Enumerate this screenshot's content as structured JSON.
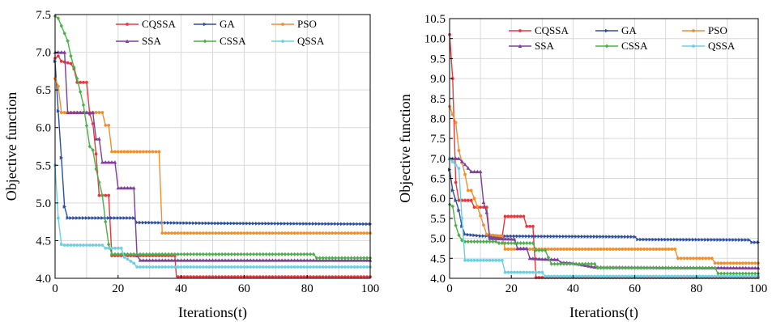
{
  "chart_data": [
    {
      "type": "line",
      "xlabel": "Iterations(t)",
      "ylabel": "Objective function",
      "xlim": [
        0,
        100
      ],
      "ylim": [
        4.0,
        7.5
      ],
      "xticks": [
        "0",
        "20",
        "40",
        "60",
        "80",
        "100"
      ],
      "yticks": [
        "4.0",
        "4.5",
        "5.0",
        "5.5",
        "6.0",
        "6.5",
        "7.0",
        "7.5"
      ],
      "grid": true,
      "legend_position": "top-right",
      "series": [
        {
          "name": "CQSSA",
          "color": "#e8383d",
          "marker": "circle",
          "points": [
            [
              0,
              6.92
            ],
            [
              1,
              6.95
            ],
            [
              2,
              6.88
            ],
            [
              5,
              6.85
            ],
            [
              6,
              6.78
            ],
            [
              7,
              6.6
            ],
            [
              10,
              6.6
            ],
            [
              11,
              6.18
            ],
            [
              12,
              6.05
            ],
            [
              13,
              5.65
            ],
            [
              14,
              5.1
            ],
            [
              17,
              5.1
            ],
            [
              18,
              4.3
            ],
            [
              38,
              4.3
            ],
            [
              38.5,
              4.02
            ],
            [
              100,
              4.02
            ]
          ]
        },
        {
          "name": "GA",
          "color": "#2d4fa2",
          "marker": "triangle-right",
          "points": [
            [
              0,
              6.88
            ],
            [
              1,
              6.22
            ],
            [
              2,
              5.6
            ],
            [
              3,
              4.95
            ],
            [
              4,
              4.8
            ],
            [
              25,
              4.8
            ],
            [
              26,
              4.74
            ],
            [
              50,
              4.73
            ],
            [
              100,
              4.72
            ]
          ]
        },
        {
          "name": "PSO",
          "color": "#f28e2b",
          "marker": "circle",
          "points": [
            [
              0,
              6.65
            ],
            [
              1,
              6.55
            ],
            [
              2,
              6.2
            ],
            [
              15,
              6.2
            ],
            [
              16,
              6.03
            ],
            [
              17,
              6.03
            ],
            [
              18,
              5.68
            ],
            [
              33,
              5.68
            ],
            [
              34,
              4.6
            ],
            [
              100,
              4.6
            ]
          ]
        },
        {
          "name": "SSA",
          "color": "#7e3f98",
          "marker": "triangle-up",
          "points": [
            [
              0,
              7.0
            ],
            [
              3,
              7.0
            ],
            [
              4,
              6.2
            ],
            [
              12,
              6.2
            ],
            [
              13,
              5.85
            ],
            [
              14,
              5.85
            ],
            [
              15,
              5.54
            ],
            [
              19,
              5.54
            ],
            [
              20,
              5.2
            ],
            [
              25,
              5.2
            ],
            [
              26,
              4.3
            ],
            [
              27,
              4.24
            ],
            [
              100,
              4.24
            ]
          ]
        },
        {
          "name": "CSSA",
          "color": "#4daf4a",
          "marker": "diamond",
          "points": [
            [
              0,
              7.48
            ],
            [
              1,
              7.45
            ],
            [
              2,
              7.35
            ],
            [
              4,
              7.15
            ],
            [
              5,
              6.95
            ],
            [
              7,
              6.65
            ],
            [
              9,
              6.3
            ],
            [
              11,
              5.75
            ],
            [
              12,
              5.7
            ],
            [
              13,
              5.45
            ],
            [
              15,
              5.1
            ],
            [
              16,
              4.75
            ],
            [
              17,
              4.45
            ],
            [
              18,
              4.32
            ],
            [
              82,
              4.32
            ],
            [
              83,
              4.27
            ],
            [
              100,
              4.27
            ]
          ]
        },
        {
          "name": "QSSA",
          "color": "#6bd0e2",
          "marker": "circle",
          "points": [
            [
              0,
              5.5
            ],
            [
              1,
              4.8
            ],
            [
              2,
              4.45
            ],
            [
              3,
              4.44
            ],
            [
              15,
              4.44
            ],
            [
              16,
              4.4
            ],
            [
              21,
              4.4
            ],
            [
              22,
              4.28
            ],
            [
              25,
              4.2
            ],
            [
              26,
              4.15
            ],
            [
              100,
              4.15
            ]
          ]
        }
      ]
    },
    {
      "type": "line",
      "xlabel": "Iterations(t)",
      "ylabel": "Objective function",
      "xlim": [
        0,
        100
      ],
      "ylim": [
        4.0,
        10.5
      ],
      "xticks": [
        "0",
        "20",
        "40",
        "60",
        "80",
        "100"
      ],
      "yticks": [
        "4.0",
        "4.5",
        "5.0",
        "5.5",
        "6.0",
        "6.5",
        "7.0",
        "7.5",
        "8.0",
        "8.5",
        "9.0",
        "9.5",
        "10.0",
        "10.5"
      ],
      "grid": true,
      "legend_position": "top-right",
      "series": [
        {
          "name": "CQSSA",
          "color": "#e8383d",
          "marker": "circle",
          "points": [
            [
              0,
              10.1
            ],
            [
              1,
              9.0
            ],
            [
              2,
              6.4
            ],
            [
              3,
              5.95
            ],
            [
              7,
              5.95
            ],
            [
              8,
              5.78
            ],
            [
              12,
              5.78
            ],
            [
              13,
              5.02
            ],
            [
              17,
              5.02
            ],
            [
              18,
              5.55
            ],
            [
              24,
              5.55
            ],
            [
              25,
              5.3
            ],
            [
              27,
              5.3
            ],
            [
              28,
              4.02
            ],
            [
              100,
              4.02
            ]
          ]
        },
        {
          "name": "GA",
          "color": "#2d4fa2",
          "marker": "triangle-right",
          "points": [
            [
              0,
              6.72
            ],
            [
              1,
              6.2
            ],
            [
              3,
              5.7
            ],
            [
              4,
              5.3
            ],
            [
              5,
              5.1
            ],
            [
              10,
              5.06
            ],
            [
              30,
              5.05
            ],
            [
              60,
              5.04
            ],
            [
              61,
              4.97
            ],
            [
              97,
              4.96
            ],
            [
              98,
              4.9
            ],
            [
              100,
              4.9
            ]
          ]
        },
        {
          "name": "PSO",
          "color": "#f28e2b",
          "marker": "circle",
          "points": [
            [
              0,
              8.3
            ],
            [
              2,
              7.9
            ],
            [
              3,
              7.2
            ],
            [
              5,
              6.6
            ],
            [
              6,
              6.2
            ],
            [
              7,
              6.2
            ],
            [
              9,
              5.8
            ],
            [
              12,
              5.1
            ],
            [
              17,
              5.05
            ],
            [
              18,
              4.73
            ],
            [
              73,
              4.73
            ],
            [
              74,
              4.5
            ],
            [
              85,
              4.5
            ],
            [
              86,
              4.38
            ],
            [
              100,
              4.38
            ]
          ]
        },
        {
          "name": "SSA",
          "color": "#7e3f98",
          "marker": "triangle-up",
          "points": [
            [
              0,
              7.0
            ],
            [
              3,
              7.0
            ],
            [
              5,
              6.85
            ],
            [
              7,
              6.67
            ],
            [
              10,
              6.67
            ],
            [
              11,
              5.9
            ],
            [
              12,
              5.65
            ],
            [
              13,
              5.0
            ],
            [
              21,
              4.98
            ],
            [
              22,
              4.75
            ],
            [
              25,
              4.75
            ],
            [
              26,
              4.5
            ],
            [
              30,
              4.48
            ],
            [
              35,
              4.47
            ],
            [
              36,
              4.4
            ],
            [
              40,
              4.38
            ],
            [
              47,
              4.28
            ],
            [
              100,
              4.26
            ]
          ]
        },
        {
          "name": "CSSA",
          "color": "#4daf4a",
          "marker": "diamond",
          "points": [
            [
              0,
              5.85
            ],
            [
              1,
              5.8
            ],
            [
              2,
              5.32
            ],
            [
              3,
              5.08
            ],
            [
              4,
              4.95
            ],
            [
              5,
              4.92
            ],
            [
              15,
              4.92
            ],
            [
              16,
              4.88
            ],
            [
              27,
              4.88
            ],
            [
              28,
              4.7
            ],
            [
              31,
              4.7
            ],
            [
              32,
              4.52
            ],
            [
              33,
              4.36
            ],
            [
              47,
              4.36
            ],
            [
              48,
              4.26
            ],
            [
              86,
              4.26
            ],
            [
              87,
              4.12
            ],
            [
              100,
              4.12
            ]
          ]
        },
        {
          "name": "QSSA",
          "color": "#6bd0e2",
          "marker": "circle",
          "points": [
            [
              0,
              7.0
            ],
            [
              3,
              6.75
            ],
            [
              4,
              5.5
            ],
            [
              5,
              4.45
            ],
            [
              17,
              4.45
            ],
            [
              18,
              4.15
            ],
            [
              30,
              4.15
            ],
            [
              31,
              4.05
            ],
            [
              100,
              4.05
            ]
          ]
        }
      ]
    }
  ]
}
